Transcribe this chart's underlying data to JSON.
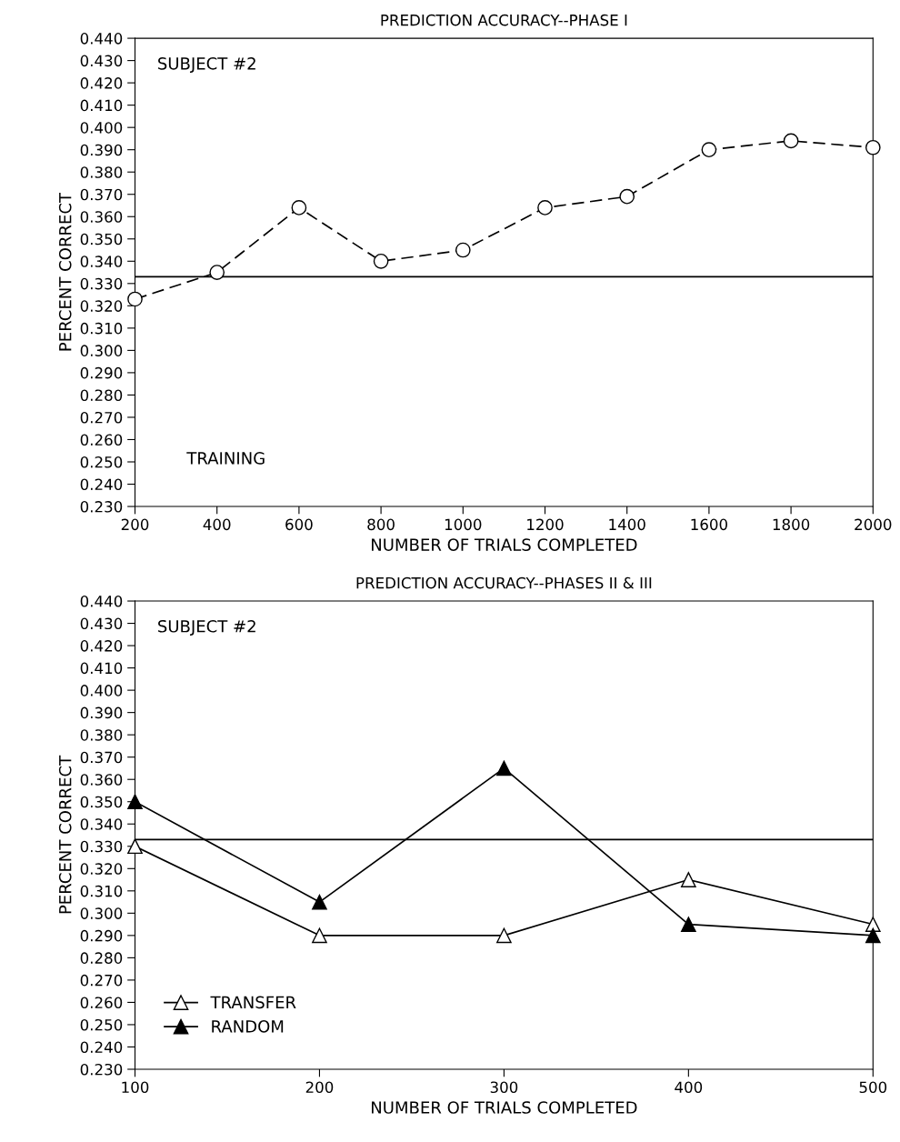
{
  "chart_data": [
    {
      "type": "line",
      "title": "PREDICTION ACCURACY--PHASE I",
      "xlabel": "NUMBER OF TRIALS COMPLETED",
      "ylabel": "PERCENT CORRECT",
      "annotations": [
        "SUBJECT #2",
        "TRAINING"
      ],
      "x": [
        200,
        400,
        600,
        800,
        1000,
        1200,
        1400,
        1600,
        1800,
        2000
      ],
      "series": [
        {
          "color": "#000000",
          "values": [
            0.323,
            0.335,
            0.364,
            0.34,
            0.345,
            0.364,
            0.369,
            0.39,
            0.394,
            0.391
          ],
          "marker": "circle",
          "line_style": "dashed"
        }
      ],
      "xlim": [
        200,
        2000
      ],
      "xticks": [
        200,
        400,
        600,
        800,
        1000,
        1200,
        1400,
        1600,
        1800,
        2000
      ],
      "ylim": [
        0.23,
        0.44
      ],
      "yticks": [
        {
          "value": 0.23,
          "label": "0.230"
        },
        {
          "value": 0.24,
          "label": "0.240"
        },
        {
          "value": 0.25,
          "label": "0.250"
        },
        {
          "value": 0.26,
          "label": "0.260"
        },
        {
          "value": 0.27,
          "label": "0.270"
        },
        {
          "value": 0.28,
          "label": "0.280"
        },
        {
          "value": 0.29,
          "label": "0.290"
        },
        {
          "value": 0.3,
          "label": "0.300"
        },
        {
          "value": 0.31,
          "label": "0.310"
        },
        {
          "value": 0.32,
          "label": "0.320"
        },
        {
          "value": 0.33,
          "label": "0.330"
        },
        {
          "value": 0.34,
          "label": "0.340"
        },
        {
          "value": 0.35,
          "label": "0.350"
        },
        {
          "value": 0.36,
          "label": "0.360"
        },
        {
          "value": 0.37,
          "label": "0.370"
        },
        {
          "value": 0.38,
          "label": "0.380"
        },
        {
          "value": 0.39,
          "label": "0.390"
        },
        {
          "value": 0.4,
          "label": "0.400"
        },
        {
          "value": 0.41,
          "label": "0.410"
        },
        {
          "value": 0.42,
          "label": "0.420"
        },
        {
          "value": 0.43,
          "label": "0.430"
        },
        {
          "value": 0.44,
          "label": "0.440"
        }
      ],
      "ref_lines": [
        {
          "axis": "y",
          "value": 0.333,
          "color": "#000000"
        }
      ],
      "grid": false,
      "legend": false
    },
    {
      "type": "line",
      "title": "PREDICTION ACCURACY--PHASES II & III",
      "xlabel": "NUMBER OF TRIALS COMPLETED",
      "ylabel": "PERCENT CORRECT",
      "annotations": [
        "SUBJECT #2"
      ],
      "x": [
        100,
        200,
        300,
        400,
        500
      ],
      "series": [
        {
          "name": "TRANSFER",
          "color": "#000000",
          "values": [
            0.33,
            0.29,
            0.29,
            0.315,
            0.295
          ],
          "marker": "triangle",
          "line_style": "solid"
        },
        {
          "name": "RANDOM",
          "color": "#000000",
          "values": [
            0.35,
            0.305,
            0.365,
            0.295,
            0.29
          ],
          "marker": "triangle",
          "line_style": "solid"
        }
      ],
      "xlim": [
        100,
        500
      ],
      "xticks": [
        100,
        200,
        300,
        400,
        500
      ],
      "ylim": [
        0.23,
        0.44
      ],
      "yticks": [
        {
          "value": 0.23,
          "label": "0.230"
        },
        {
          "value": 0.24,
          "label": "0.240"
        },
        {
          "value": 0.25,
          "label": "0.250"
        },
        {
          "value": 0.26,
          "label": "0.260"
        },
        {
          "value": 0.27,
          "label": "0.270"
        },
        {
          "value": 0.28,
          "label": "0.280"
        },
        {
          "value": 0.29,
          "label": "0.290"
        },
        {
          "value": 0.3,
          "label": "0.300"
        },
        {
          "value": 0.31,
          "label": "0.310"
        },
        {
          "value": 0.32,
          "label": "0.320"
        },
        {
          "value": 0.33,
          "label": "0.330"
        },
        {
          "value": 0.34,
          "label": "0.340"
        },
        {
          "value": 0.35,
          "label": "0.350"
        },
        {
          "value": 0.36,
          "label": "0.360"
        },
        {
          "value": 0.37,
          "label": "0.370"
        },
        {
          "value": 0.38,
          "label": "0.380"
        },
        {
          "value": 0.39,
          "label": "0.390"
        },
        {
          "value": 0.4,
          "label": "0.400"
        },
        {
          "value": 0.41,
          "label": "0.410"
        },
        {
          "value": 0.42,
          "label": "0.420"
        },
        {
          "value": 0.43,
          "label": "0.430"
        },
        {
          "value": 0.44,
          "label": "0.440"
        }
      ],
      "ref_lines": [
        {
          "axis": "y",
          "value": 0.333,
          "color": "#000000"
        }
      ],
      "grid": false,
      "legend": "bottom left"
    }
  ]
}
